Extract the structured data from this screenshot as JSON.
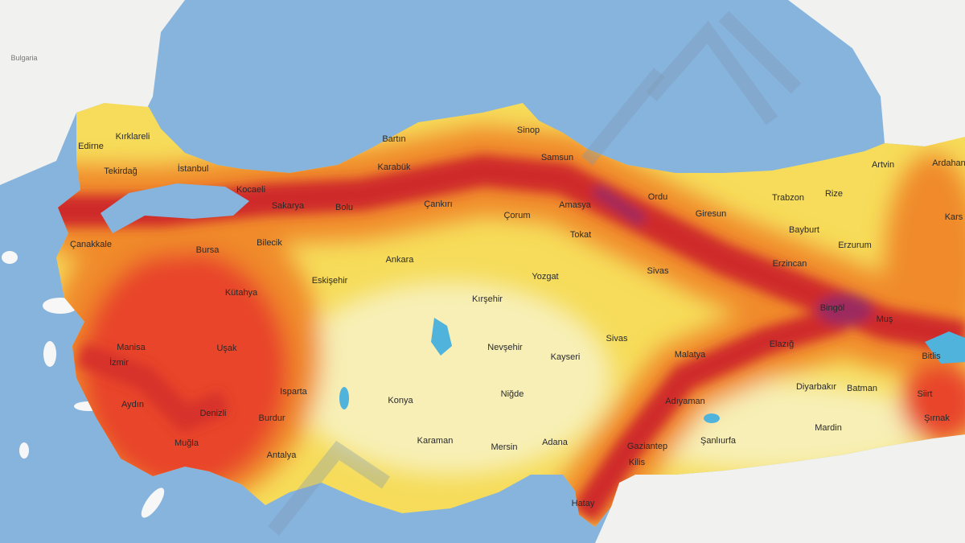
{
  "map": {
    "colors": {
      "sea": "#86b4dd",
      "neighbor_land": "#f1f1ef",
      "zone_lowest": "#f7efb6",
      "zone_low": "#f6dc5a",
      "zone_medium": "#f49a2c",
      "zone_high": "#e8452a",
      "zone_highest": "#c81f2e",
      "zone_extreme": "#9c2a5e",
      "lake": "#4fb3dc"
    },
    "countries": {
      "bulgaria": "Bulgaria"
    },
    "provinces": {
      "edirne": "Edirne",
      "kirklareli": "Kırklareli",
      "tekirdag": "Tekirdağ",
      "istanbul": "İstanbul",
      "kocaeli": "Kocaeli",
      "sakarya": "Sakarya",
      "bolu": "Bolu",
      "bartin": "Bartın",
      "karabuk": "Karabük",
      "cankiri": "Çankırı",
      "sinop": "Sinop",
      "samsun": "Samsun",
      "amasya": "Amasya",
      "corum": "Çorum",
      "tokat": "Tokat",
      "ordu": "Ordu",
      "giresun": "Giresun",
      "trabzon": "Trabzon",
      "rize": "Rize",
      "artvin": "Artvin",
      "ardahan": "Ardahan",
      "kars": "Kars",
      "bayburt": "Bayburt",
      "erzurum": "Erzurum",
      "erzincan": "Erzincan",
      "canakkale": "Çanakkale",
      "bursa": "Bursa",
      "bilecik": "Bilecik",
      "ankara": "Ankara",
      "eskisehir": "Eskişehir",
      "kutahya": "Kütahya",
      "yozgat": "Yozgat",
      "kirsehir": "Kırşehir",
      "sivas": "Sivas",
      "sivas_2": "Sivas",
      "malatya": "Malatya",
      "manisa": "Manisa",
      "izmir": "İzmir",
      "usak": "Uşak",
      "aydin": "Aydın",
      "denizli": "Denizli",
      "burdur": "Burdur",
      "isparta": "Isparta",
      "mugla": "Muğla",
      "antalya": "Antalya",
      "konya": "Konya",
      "karaman": "Karaman",
      "nevsehir": "Nevşehir",
      "kayseri": "Kayseri",
      "nigde": "Niğde",
      "mersin": "Mersin",
      "adana": "Adana",
      "gaziantep": "Gaziantep",
      "kilis": "Kilis",
      "hatay": "Hatay",
      "adiyaman": "Adıyaman",
      "sanliurfa": "Şanlıurfa",
      "diyarbakir": "Diyarbakır",
      "batman": "Batman",
      "mardin": "Mardin",
      "elazig": "Elazığ",
      "bingol": "Bingöl",
      "mus": "Muş",
      "bitlis": "Bitlis",
      "siirt": "Siirt",
      "sirnak": "Şırnak"
    }
  }
}
